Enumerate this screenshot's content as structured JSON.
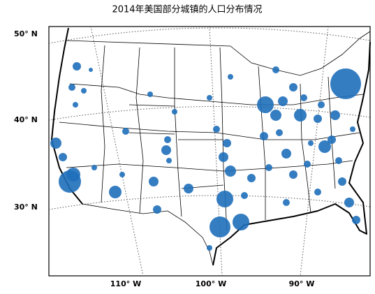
{
  "title": "2014年美国部分城镇的人口分布情况",
  "latitude_labels": [
    "50° N",
    "40° N",
    "30° N"
  ],
  "longitude_labels": [
    "110° W",
    "100° W",
    "90° W"
  ]
}
